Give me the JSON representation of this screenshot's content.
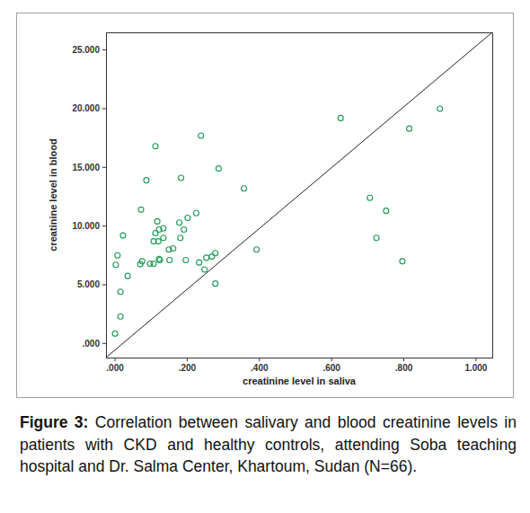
{
  "chart_data": {
    "type": "scatter",
    "x_label": "creatinine level in saliva",
    "y_label": "creatinine level in blood",
    "color": "#1f9a55",
    "marker": "circle",
    "x": [
      0.0,
      0.015,
      0.015,
      0.002,
      0.007,
      0.022,
      0.035,
      0.072,
      0.087,
      0.075,
      0.07,
      0.097,
      0.107,
      0.112,
      0.107,
      0.112,
      0.117,
      0.122,
      0.134,
      0.12,
      0.122,
      0.124,
      0.134,
      0.149,
      0.161,
      0.151,
      0.178,
      0.183,
      0.181,
      0.191,
      0.196,
      0.201,
      0.225,
      0.233,
      0.238,
      0.248,
      0.253,
      0.268,
      0.278,
      0.278,
      0.287,
      0.357,
      0.392,
      0.625,
      0.706,
      0.724,
      0.751,
      0.796,
      0.815,
      0.9
    ],
    "values": [
      0.84,
      2.3,
      4.4,
      6.7,
      7.5,
      9.2,
      5.75,
      11.4,
      13.9,
      7.0,
      6.75,
      6.8,
      6.8,
      16.8,
      8.7,
      9.4,
      10.4,
      9.7,
      9.0,
      8.7,
      7.2,
      7.1,
      9.8,
      8.0,
      8.1,
      7.1,
      10.3,
      14.1,
      9.0,
      9.7,
      7.1,
      10.7,
      11.1,
      6.9,
      17.7,
      6.3,
      7.3,
      7.4,
      7.7,
      5.1,
      14.9,
      13.2,
      8.0,
      19.2,
      12.4,
      9.0,
      11.3,
      7.0,
      18.3,
      20.0
    ],
    "xlim": [
      -0.025,
      1.045
    ],
    "ylim": [
      -1.2,
      26.5
    ],
    "xticks": [
      {
        "value": 0,
        "label": ".000"
      },
      {
        "value": 0.2,
        "label": ".200"
      },
      {
        "value": 0.4,
        "label": ".400"
      },
      {
        "value": 0.6,
        "label": ".600"
      },
      {
        "value": 0.8,
        "label": ".800"
      },
      {
        "value": 1,
        "label": "1.000"
      }
    ],
    "yticks": [
      {
        "value": 0,
        "label": ".000"
      },
      {
        "value": 5,
        "label": "5.000"
      },
      {
        "value": 10,
        "label": "10.000"
      },
      {
        "value": 15,
        "label": "15.000"
      },
      {
        "value": 20,
        "label": "20.000"
      },
      {
        "value": 25,
        "label": "25.000"
      }
    ],
    "grid": false
  },
  "caption": {
    "label": "Figure 3:",
    "text": "Correlation between salivary and blood creatinine levels in patients with CKD and healthy controls, attending Soba teaching hospital and Dr. Salma Center, Khartoum, Sudan (N=66)."
  }
}
